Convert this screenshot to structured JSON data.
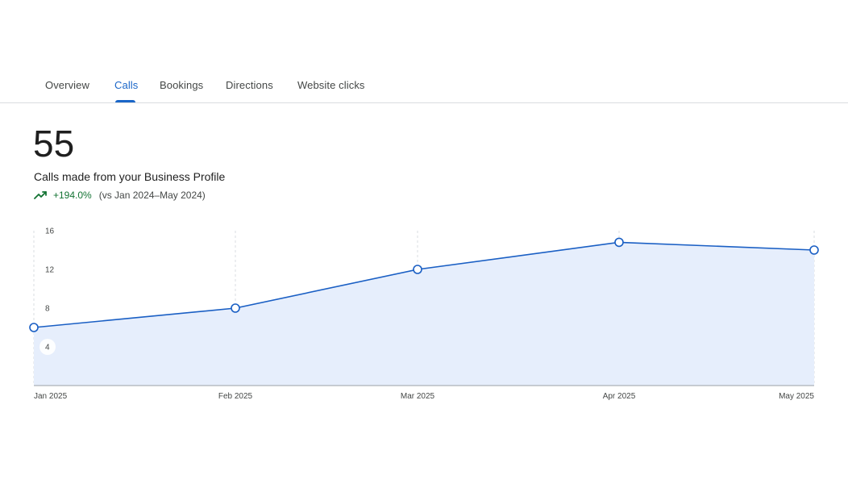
{
  "tabs": [
    {
      "label": "Overview",
      "active": false
    },
    {
      "label": "Calls",
      "active": true
    },
    {
      "label": "Bookings",
      "active": false
    },
    {
      "label": "Directions",
      "active": false
    },
    {
      "label": "Website clicks",
      "active": false
    }
  ],
  "metric": {
    "value": "55",
    "label": "Calls made from your Business Profile",
    "change": "+194.0%",
    "comparison": "(vs Jan 2024–May 2024)"
  },
  "colors": {
    "accent": "#1a66c8",
    "positive": "#137333",
    "area_fill": "#e6eefc",
    "line": "#1a5fc4"
  },
  "icons": {
    "trend": "trending-up-icon"
  },
  "chart_data": {
    "type": "area",
    "categories": [
      "Jan 2025",
      "Feb 2025",
      "Mar 2025",
      "Apr 2025",
      "May 2025"
    ],
    "series": [
      {
        "values": [
          6,
          8,
          12,
          14.8,
          14
        ]
      }
    ],
    "yticks": [
      "4",
      "8",
      "12",
      "16"
    ],
    "ylim": [
      0,
      16
    ],
    "grid": "vertical dashed",
    "title": "",
    "xlabel": "",
    "ylabel": ""
  }
}
